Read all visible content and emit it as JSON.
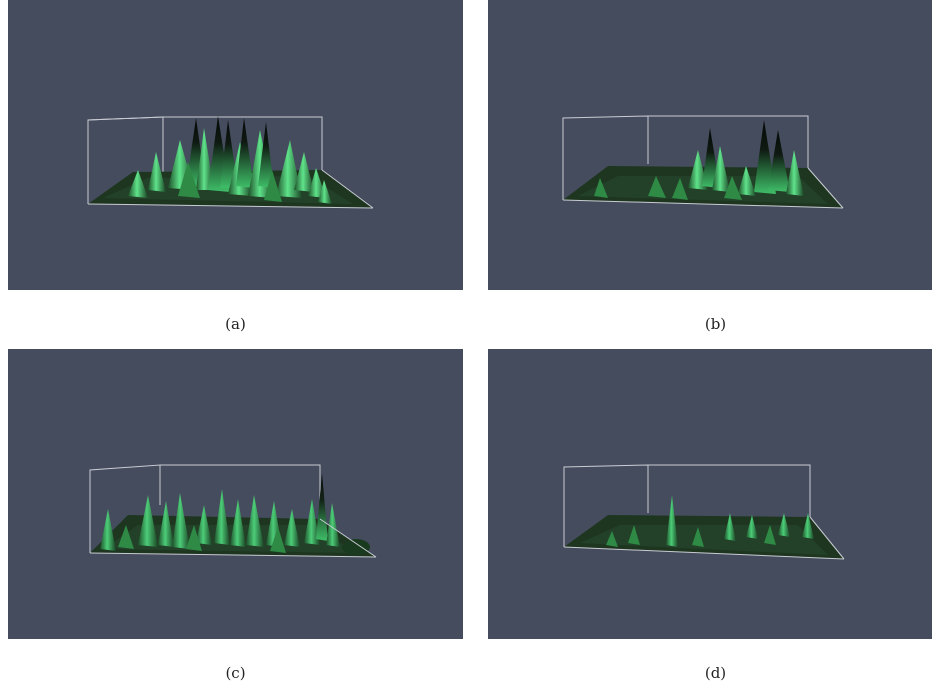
{
  "colors": {
    "background": "#454c5e",
    "surface": "#1f3a22",
    "peak_light": "#4fd17a",
    "peak_mid": "#2e8a45",
    "peak_tip": "#0b0f0c",
    "box_line": "#c9ccd3"
  },
  "panels": [
    {
      "caption": "(a)"
    },
    {
      "caption": "(b)"
    },
    {
      "caption": "(c)"
    },
    {
      "caption": "(d)"
    }
  ]
}
